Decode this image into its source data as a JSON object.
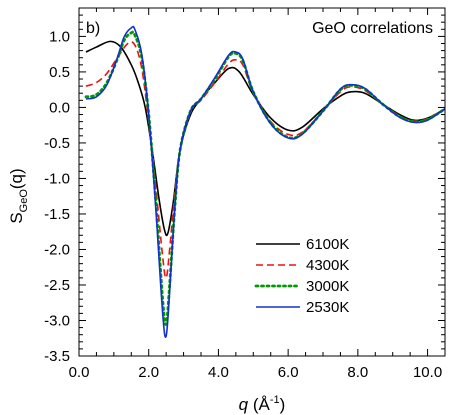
{
  "chart_data": {
    "type": "line",
    "panel_label": "b)",
    "annotation": "GeO correlations",
    "xlabel": {
      "symbol": "q",
      "unit_open": " (Å",
      "unit_sup": "-1",
      "unit_close": ")"
    },
    "ylabel": {
      "symbol": "S",
      "subscript": "GeO",
      "arg": "(q)"
    },
    "xlim": [
      0,
      10.5
    ],
    "ylim": [
      -3.5,
      1.4
    ],
    "xticks": [
      0.0,
      2.0,
      4.0,
      6.0,
      8.0,
      10.0
    ],
    "xtick_labels": [
      "0.0",
      "2.0",
      "4.0",
      "6.0",
      "8.0",
      "10.0"
    ],
    "yticks": [
      1.0,
      0.5,
      0.0,
      -0.5,
      -1.0,
      -1.5,
      -2.0,
      -2.5,
      -3.0,
      -3.5
    ],
    "ytick_labels": [
      "1.0",
      "0.5",
      "0.0",
      "-0.5",
      "-1.0",
      "-1.5",
      "-2.0",
      "-2.5",
      "-3.0",
      "-3.5"
    ],
    "grid": false,
    "legend_position": "lower-right",
    "series": [
      {
        "name": "6100K",
        "color": "#000000",
        "dash": "solid",
        "x": [
          0.2,
          0.5,
          0.9,
          1.2,
          1.5,
          1.7,
          1.9,
          2.1,
          2.3,
          2.45,
          2.55,
          2.7,
          2.9,
          3.2,
          3.5,
          3.9,
          4.3,
          4.6,
          5.0,
          5.5,
          6.0,
          6.4,
          7.0,
          7.5,
          7.8,
          8.2,
          8.7,
          9.2,
          9.6,
          10.0,
          10.5
        ],
        "y": [
          0.78,
          0.85,
          0.93,
          0.85,
          0.6,
          0.35,
          0.0,
          -0.6,
          -1.3,
          -1.72,
          -1.77,
          -1.35,
          -0.6,
          -0.1,
          0.12,
          0.35,
          0.55,
          0.5,
          0.18,
          -0.15,
          -0.32,
          -0.28,
          -0.02,
          0.16,
          0.22,
          0.2,
          0.05,
          -0.1,
          -0.18,
          -0.15,
          -0.02
        ]
      },
      {
        "name": "4300K",
        "color": "#ee1111",
        "dash": "dashed",
        "x": [
          0.2,
          0.5,
          0.8,
          1.1,
          1.4,
          1.6,
          1.8,
          2.0,
          2.2,
          2.4,
          2.5,
          2.6,
          2.75,
          2.9,
          3.2,
          3.5,
          3.9,
          4.3,
          4.5,
          4.7,
          5.0,
          5.5,
          6.0,
          6.4,
          7.0,
          7.5,
          7.8,
          8.2,
          8.7,
          9.2,
          9.6,
          10.0,
          10.5
        ],
        "y": [
          0.3,
          0.35,
          0.48,
          0.7,
          0.9,
          0.88,
          0.55,
          -0.2,
          -1.1,
          -2.1,
          -2.4,
          -2.0,
          -1.2,
          -0.6,
          -0.05,
          0.1,
          0.35,
          0.62,
          0.67,
          0.6,
          0.2,
          -0.2,
          -0.38,
          -0.35,
          -0.05,
          0.22,
          0.29,
          0.24,
          0.05,
          -0.12,
          -0.19,
          -0.16,
          -0.02
        ]
      },
      {
        "name": "3000K",
        "color": "#009900",
        "dash": "dotted",
        "x": [
          0.2,
          0.5,
          0.8,
          1.1,
          1.3,
          1.5,
          1.6,
          1.8,
          2.0,
          2.2,
          2.4,
          2.5,
          2.6,
          2.75,
          2.9,
          3.2,
          3.5,
          3.9,
          4.3,
          4.5,
          4.7,
          5.0,
          5.5,
          6.0,
          6.4,
          7.0,
          7.5,
          7.8,
          8.2,
          8.7,
          9.2,
          9.6,
          10.0,
          10.5
        ],
        "y": [
          0.15,
          0.18,
          0.35,
          0.68,
          0.95,
          1.05,
          1.02,
          0.7,
          -0.1,
          -1.3,
          -2.7,
          -3.05,
          -2.5,
          -1.4,
          -0.6,
          -0.05,
          0.12,
          0.4,
          0.72,
          0.76,
          0.66,
          0.22,
          -0.22,
          -0.42,
          -0.37,
          -0.05,
          0.25,
          0.31,
          0.26,
          0.05,
          -0.13,
          -0.2,
          -0.17,
          -0.02
        ]
      },
      {
        "name": "2530K",
        "color": "#1133cc",
        "dash": "solid",
        "x": [
          0.2,
          0.5,
          0.8,
          1.1,
          1.3,
          1.5,
          1.6,
          1.8,
          2.0,
          2.2,
          2.4,
          2.5,
          2.6,
          2.75,
          2.9,
          3.2,
          3.5,
          3.9,
          4.3,
          4.5,
          4.7,
          5.0,
          5.5,
          6.0,
          6.4,
          7.0,
          7.5,
          7.8,
          8.2,
          8.7,
          9.2,
          9.6,
          10.0,
          10.5
        ],
        "y": [
          0.12,
          0.15,
          0.32,
          0.7,
          1.0,
          1.12,
          1.1,
          0.75,
          -0.1,
          -1.4,
          -2.9,
          -3.22,
          -2.6,
          -1.4,
          -0.6,
          -0.05,
          0.12,
          0.42,
          0.74,
          0.78,
          0.68,
          0.22,
          -0.23,
          -0.43,
          -0.38,
          -0.05,
          0.26,
          0.32,
          0.27,
          0.05,
          -0.14,
          -0.21,
          -0.18,
          -0.02
        ]
      }
    ]
  }
}
